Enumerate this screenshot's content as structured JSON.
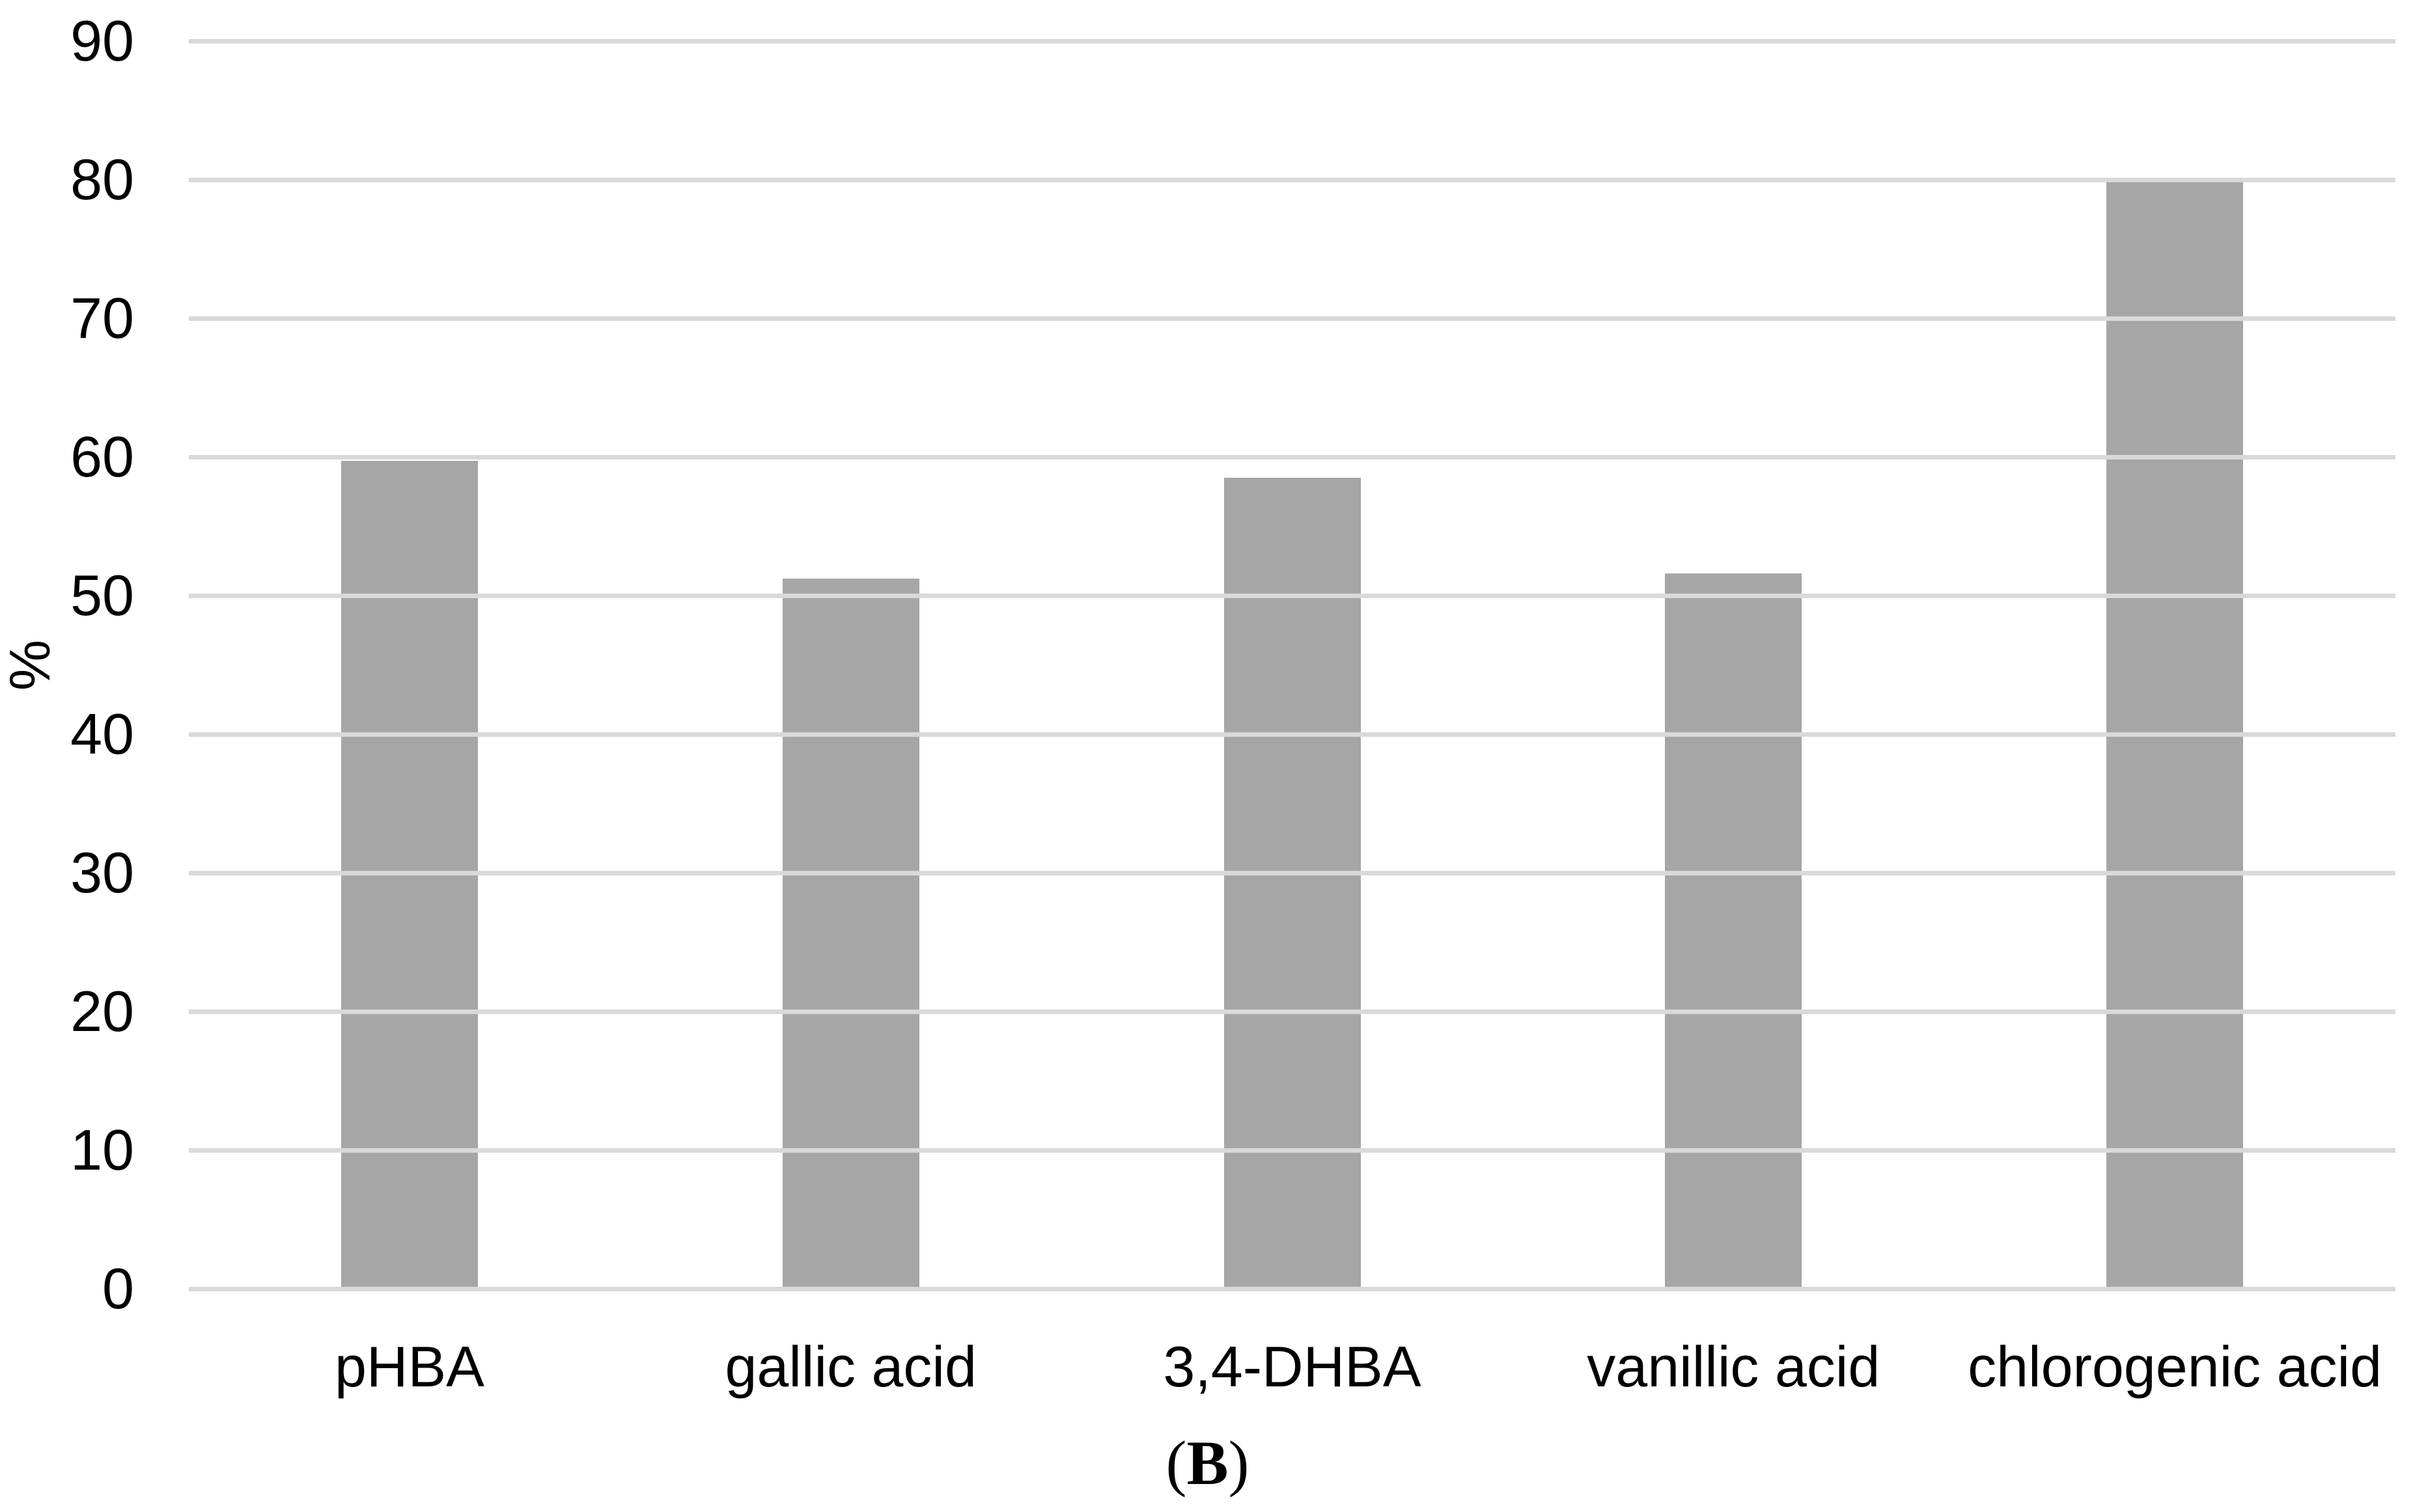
{
  "chart_data": {
    "type": "bar",
    "categories": [
      "pHBA",
      "gallic acid",
      "3,4-DHBA",
      "vanillic acid",
      "chlorogenic acid"
    ],
    "values": [
      59.7,
      51.2,
      58.5,
      51.6,
      79.8
    ],
    "title": "",
    "xlabel": "",
    "ylabel": "%",
    "ylim": [
      0,
      90
    ],
    "yticks": [
      0,
      10,
      20,
      30,
      40,
      50,
      60,
      70,
      80,
      90
    ],
    "grid": "horizontal",
    "legend": "none",
    "bar_color": "#a6a6a6",
    "gridline_color": "#d9d9d9",
    "text_color": "#000000"
  },
  "caption": {
    "open": "(",
    "letter": "B",
    "close": ")"
  }
}
